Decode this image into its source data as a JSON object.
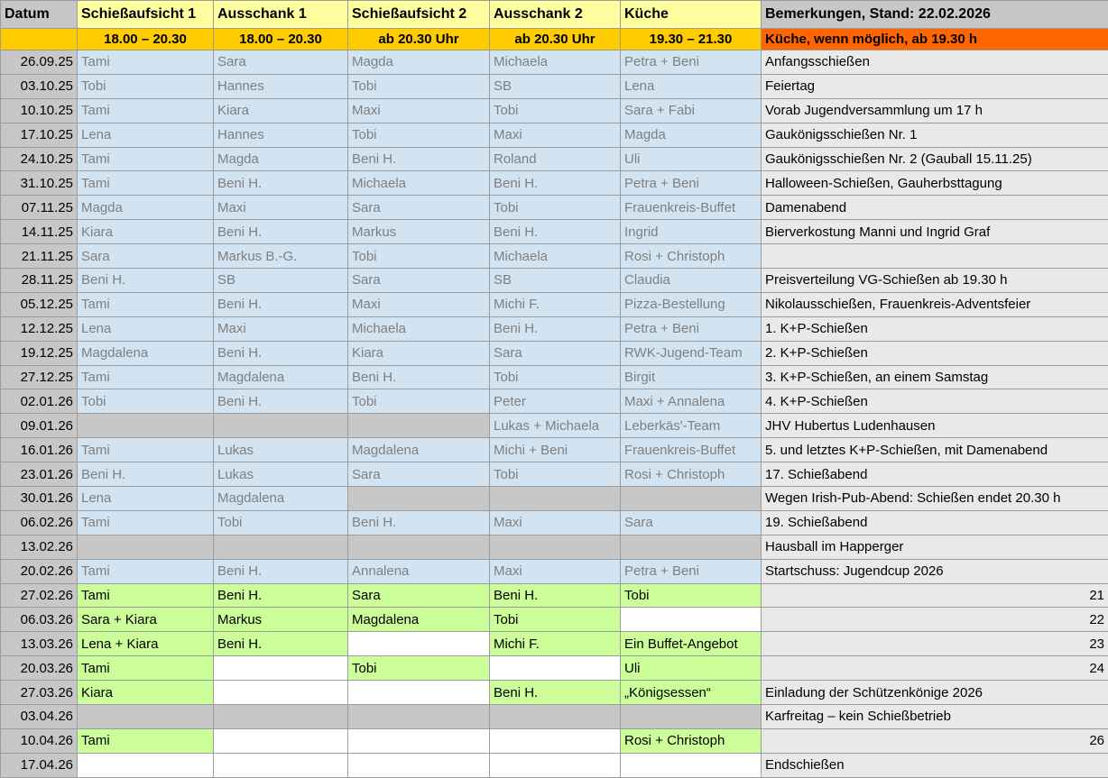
{
  "colors": {
    "header_yellow": "#FFFF9F",
    "gold": "#FFCC00",
    "orange": "#FF6600",
    "cell_blue": "#D2E4F2",
    "cell_green": "#CCFF99",
    "cell_gray": "#C7C7C7",
    "remark_gray": "#E9E9E9",
    "cell_text_gray": "#7F7F7F"
  },
  "table": {
    "columns": {
      "datum": "Datum",
      "cols": [
        {
          "label": "Schießaufsicht 1",
          "time": "18.00 – 20.30"
        },
        {
          "label": "Ausschank 1",
          "time": "18.00 – 20.30"
        },
        {
          "label": "Schießaufsicht 2",
          "time": "ab 20.30 Uhr"
        },
        {
          "label": "Ausschank 2",
          "time": "ab 20.30 Uhr"
        },
        {
          "label": "Küche",
          "time": "19.30 – 21.30"
        }
      ],
      "remarks_header": "Bemerkungen, Stand: 22.02.2026",
      "remarks_subheader": "Küche, wenn möglich, ab 19.30 h"
    },
    "rows": [
      {
        "date": "26.09.25",
        "cells": [
          {
            "t": "Tami",
            "bg": "blue"
          },
          {
            "t": "Sara",
            "bg": "blue"
          },
          {
            "t": "Magda",
            "bg": "blue"
          },
          {
            "t": "Michaela",
            "bg": "blue"
          },
          {
            "t": "Petra + Beni",
            "bg": "blue"
          }
        ],
        "remark": {
          "t": "Anfangsschießen",
          "align": "left"
        }
      },
      {
        "date": "03.10.25",
        "cells": [
          {
            "t": "Tobi",
            "bg": "blue"
          },
          {
            "t": "Hannes",
            "bg": "blue"
          },
          {
            "t": "Tobi",
            "bg": "blue"
          },
          {
            "t": "SB",
            "bg": "blue"
          },
          {
            "t": "Lena",
            "bg": "blue"
          }
        ],
        "remark": {
          "t": "Feiertag",
          "align": "left"
        }
      },
      {
        "date": "10.10.25",
        "cells": [
          {
            "t": "Tami",
            "bg": "blue"
          },
          {
            "t": "Kiara",
            "bg": "blue"
          },
          {
            "t": "Maxi",
            "bg": "blue"
          },
          {
            "t": "Tobi",
            "bg": "blue"
          },
          {
            "t": "Sara + Fabi",
            "bg": "blue"
          }
        ],
        "remark": {
          "t": "Vorab Jugendversammlung um 17 h",
          "align": "left"
        }
      },
      {
        "date": "17.10.25",
        "cells": [
          {
            "t": "Lena",
            "bg": "blue"
          },
          {
            "t": "Hannes",
            "bg": "blue"
          },
          {
            "t": "Tobi",
            "bg": "blue"
          },
          {
            "t": "Maxi",
            "bg": "blue"
          },
          {
            "t": "Magda",
            "bg": "blue"
          }
        ],
        "remark": {
          "t": "Gaukönigsschießen Nr. 1",
          "align": "left"
        }
      },
      {
        "date": "24.10.25",
        "cells": [
          {
            "t": "Tami",
            "bg": "blue"
          },
          {
            "t": "Magda",
            "bg": "blue"
          },
          {
            "t": "Beni H.",
            "bg": "blue"
          },
          {
            "t": "Roland",
            "bg": "blue"
          },
          {
            "t": "Uli",
            "bg": "blue"
          }
        ],
        "remark": {
          "t": "Gaukönigsschießen Nr. 2 (Gauball 15.11.25)",
          "align": "left"
        }
      },
      {
        "date": "31.10.25",
        "cells": [
          {
            "t": "Tami",
            "bg": "blue"
          },
          {
            "t": "Beni H.",
            "bg": "blue"
          },
          {
            "t": "Michaela",
            "bg": "blue"
          },
          {
            "t": "Beni H.",
            "bg": "blue"
          },
          {
            "t": "Petra + Beni",
            "bg": "blue"
          }
        ],
        "remark": {
          "t": "Halloween-Schießen, Gauherbsttagung",
          "align": "left"
        }
      },
      {
        "date": "07.11.25",
        "cells": [
          {
            "t": "Magda",
            "bg": "blue"
          },
          {
            "t": "Maxi",
            "bg": "blue"
          },
          {
            "t": "Sara",
            "bg": "blue"
          },
          {
            "t": "Tobi",
            "bg": "blue"
          },
          {
            "t": "Frauenkreis-Buffet",
            "bg": "blue"
          }
        ],
        "remark": {
          "t": "Damenabend",
          "align": "left"
        }
      },
      {
        "date": "14.11.25",
        "cells": [
          {
            "t": "Kiara",
            "bg": "blue"
          },
          {
            "t": "Beni H.",
            "bg": "blue"
          },
          {
            "t": "Markus",
            "bg": "blue"
          },
          {
            "t": "Beni H.",
            "bg": "blue"
          },
          {
            "t": "Ingrid",
            "bg": "blue"
          }
        ],
        "remark": {
          "t": "Bierverkostung Manni und Ingrid Graf",
          "align": "left"
        }
      },
      {
        "date": "21.11.25",
        "cells": [
          {
            "t": "Sara",
            "bg": "blue"
          },
          {
            "t": "Markus B.-G.",
            "bg": "blue"
          },
          {
            "t": "Tobi",
            "bg": "blue"
          },
          {
            "t": "Michaela",
            "bg": "blue"
          },
          {
            "t": "Rosi + Christoph",
            "bg": "blue"
          }
        ],
        "remark": {
          "t": "",
          "align": "left"
        }
      },
      {
        "date": "28.11.25",
        "cells": [
          {
            "t": "Beni H.",
            "bg": "blue"
          },
          {
            "t": "SB",
            "bg": "blue"
          },
          {
            "t": "Sara",
            "bg": "blue"
          },
          {
            "t": "SB",
            "bg": "blue"
          },
          {
            "t": "Claudia",
            "bg": "blue"
          }
        ],
        "remark": {
          "t": "Preisverteilung VG-Schießen ab 19.30 h",
          "align": "left"
        }
      },
      {
        "date": "05.12.25",
        "cells": [
          {
            "t": "Tami",
            "bg": "blue"
          },
          {
            "t": "Beni H.",
            "bg": "blue"
          },
          {
            "t": "Maxi",
            "bg": "blue"
          },
          {
            "t": "Michi F.",
            "bg": "blue"
          },
          {
            "t": "Pizza-Bestellung",
            "bg": "blue"
          }
        ],
        "remark": {
          "t": "Nikolausschießen, Frauenkreis-Adventsfeier",
          "align": "left"
        }
      },
      {
        "date": "12.12.25",
        "cells": [
          {
            "t": "Lena",
            "bg": "blue"
          },
          {
            "t": "Maxi",
            "bg": "blue"
          },
          {
            "t": "Michaela",
            "bg": "blue"
          },
          {
            "t": "Beni H.",
            "bg": "blue"
          },
          {
            "t": "Petra + Beni",
            "bg": "blue"
          }
        ],
        "remark": {
          "t": "1. K+P-Schießen",
          "align": "left"
        }
      },
      {
        "date": "19.12.25",
        "cells": [
          {
            "t": "Magdalena",
            "bg": "blue"
          },
          {
            "t": "Beni H.",
            "bg": "blue"
          },
          {
            "t": "Kiara",
            "bg": "blue"
          },
          {
            "t": "Sara",
            "bg": "blue"
          },
          {
            "t": "RWK-Jugend-Team",
            "bg": "blue"
          }
        ],
        "remark": {
          "t": "2. K+P-Schießen",
          "align": "left"
        }
      },
      {
        "date": "27.12.25",
        "cells": [
          {
            "t": "Tami",
            "bg": "blue"
          },
          {
            "t": "Magdalena",
            "bg": "blue"
          },
          {
            "t": "Beni H.",
            "bg": "blue"
          },
          {
            "t": "Tobi",
            "bg": "blue"
          },
          {
            "t": "Birgit",
            "bg": "blue"
          }
        ],
        "remark": {
          "t": "3. K+P-Schießen, an einem Samstag",
          "align": "left"
        }
      },
      {
        "date": "02.01.26",
        "cells": [
          {
            "t": "Tobi",
            "bg": "blue"
          },
          {
            "t": "Beni H.",
            "bg": "blue"
          },
          {
            "t": "Tobi",
            "bg": "blue"
          },
          {
            "t": "Peter",
            "bg": "blue"
          },
          {
            "t": "Maxi + Annalena",
            "bg": "blue"
          }
        ],
        "remark": {
          "t": "4. K+P-Schießen",
          "align": "left"
        }
      },
      {
        "date": "09.01.26",
        "cells": [
          {
            "t": "",
            "bg": "gray"
          },
          {
            "t": "",
            "bg": "gray"
          },
          {
            "t": "",
            "bg": "gray"
          },
          {
            "t": "Lukas + Michaela",
            "bg": "blue"
          },
          {
            "t": "Leberkäs'-Team",
            "bg": "blue"
          }
        ],
        "remark": {
          "t": "JHV Hubertus Ludenhausen",
          "align": "left"
        }
      },
      {
        "date": "16.01.26",
        "cells": [
          {
            "t": "Tami",
            "bg": "blue"
          },
          {
            "t": "Lukas",
            "bg": "blue"
          },
          {
            "t": "Magdalena",
            "bg": "blue"
          },
          {
            "t": "Michi + Beni",
            "bg": "blue"
          },
          {
            "t": "Frauenkreis-Buffet",
            "bg": "blue"
          }
        ],
        "remark": {
          "t": "5. und letztes K+P-Schießen, mit Damenabend",
          "align": "left"
        }
      },
      {
        "date": "23.01.26",
        "cells": [
          {
            "t": "Beni H.",
            "bg": "blue"
          },
          {
            "t": "Lukas",
            "bg": "blue"
          },
          {
            "t": "Sara",
            "bg": "blue"
          },
          {
            "t": "Tobi",
            "bg": "blue"
          },
          {
            "t": "Rosi + Christoph",
            "bg": "blue"
          }
        ],
        "remark": {
          "t": "17. Schießabend",
          "align": "left"
        }
      },
      {
        "date": "30.01.26",
        "cells": [
          {
            "t": "Lena",
            "bg": "blue"
          },
          {
            "t": "Magdalena",
            "bg": "blue"
          },
          {
            "t": "",
            "bg": "gray"
          },
          {
            "t": "",
            "bg": "gray"
          },
          {
            "t": "",
            "bg": "gray"
          }
        ],
        "remark": {
          "t": "Wegen Irish-Pub-Abend: Schießen endet 20.30 h",
          "align": "left"
        }
      },
      {
        "date": "06.02.26",
        "cells": [
          {
            "t": "Tami",
            "bg": "blue"
          },
          {
            "t": "Tobi",
            "bg": "blue"
          },
          {
            "t": "Beni H.",
            "bg": "blue"
          },
          {
            "t": "Maxi",
            "bg": "blue"
          },
          {
            "t": "Sara",
            "bg": "blue"
          }
        ],
        "remark": {
          "t": "19. Schießabend",
          "align": "left"
        }
      },
      {
        "date": "13.02.26",
        "cells": [
          {
            "t": "",
            "bg": "gray"
          },
          {
            "t": "",
            "bg": "gray"
          },
          {
            "t": "",
            "bg": "gray"
          },
          {
            "t": "",
            "bg": "gray"
          },
          {
            "t": "",
            "bg": "gray"
          }
        ],
        "remark": {
          "t": "Hausball im Happerger",
          "align": "left"
        }
      },
      {
        "date": "20.02.26",
        "cells": [
          {
            "t": "Tami",
            "bg": "blue"
          },
          {
            "t": "Beni H.",
            "bg": "blue"
          },
          {
            "t": "Annalena",
            "bg": "blue"
          },
          {
            "t": "Maxi",
            "bg": "blue"
          },
          {
            "t": "Petra + Beni",
            "bg": "blue"
          }
        ],
        "remark": {
          "t": "Startschuss: Jugendcup 2026",
          "align": "left"
        }
      },
      {
        "date": "27.02.26",
        "cells": [
          {
            "t": "Tami",
            "bg": "green"
          },
          {
            "t": "Beni H.",
            "bg": "green"
          },
          {
            "t": "Sara",
            "bg": "green"
          },
          {
            "t": "Beni H.",
            "bg": "green"
          },
          {
            "t": "Tobi",
            "bg": "green"
          }
        ],
        "remark": {
          "t": "21",
          "align": "right"
        }
      },
      {
        "date": "06.03.26",
        "cells": [
          {
            "t": "Sara + Kiara",
            "bg": "green"
          },
          {
            "t": "Markus",
            "bg": "green"
          },
          {
            "t": "Magdalena",
            "bg": "green"
          },
          {
            "t": "Tobi",
            "bg": "green"
          },
          {
            "t": "",
            "bg": "white"
          }
        ],
        "remark": {
          "t": "22",
          "align": "right"
        }
      },
      {
        "date": "13.03.26",
        "cells": [
          {
            "t": "Lena + Kiara",
            "bg": "green"
          },
          {
            "t": "Beni H.",
            "bg": "green"
          },
          {
            "t": "",
            "bg": "white"
          },
          {
            "t": "Michi F.",
            "bg": "green"
          },
          {
            "t": "Ein Buffet-Angebot",
            "bg": "green"
          }
        ],
        "remark": {
          "t": "23",
          "align": "right"
        }
      },
      {
        "date": "20.03.26",
        "cells": [
          {
            "t": "Tami",
            "bg": "green"
          },
          {
            "t": "",
            "bg": "white"
          },
          {
            "t": "Tobi",
            "bg": "green"
          },
          {
            "t": "",
            "bg": "white"
          },
          {
            "t": "Uli",
            "bg": "green"
          }
        ],
        "remark": {
          "t": "24",
          "align": "right"
        }
      },
      {
        "date": "27.03.26",
        "cells": [
          {
            "t": "Kiara",
            "bg": "green"
          },
          {
            "t": "",
            "bg": "white"
          },
          {
            "t": "",
            "bg": "white"
          },
          {
            "t": "Beni H.",
            "bg": "green"
          },
          {
            "t": "„Königsessen“",
            "bg": "green"
          }
        ],
        "remark": {
          "t": "Einladung der Schützenkönige 2026",
          "align": "left"
        }
      },
      {
        "date": "03.04.26",
        "cells": [
          {
            "t": "",
            "bg": "gray"
          },
          {
            "t": "",
            "bg": "gray"
          },
          {
            "t": "",
            "bg": "gray"
          },
          {
            "t": "",
            "bg": "gray"
          },
          {
            "t": "",
            "bg": "gray"
          }
        ],
        "remark": {
          "t": "Karfreitag – kein Schießbetrieb",
          "align": "left"
        }
      },
      {
        "date": "10.04.26",
        "cells": [
          {
            "t": "Tami",
            "bg": "green"
          },
          {
            "t": "",
            "bg": "white"
          },
          {
            "t": "",
            "bg": "white"
          },
          {
            "t": "",
            "bg": "white"
          },
          {
            "t": "Rosi + Christoph",
            "bg": "green"
          }
        ],
        "remark": {
          "t": "26",
          "align": "right"
        }
      },
      {
        "date": "17.04.26",
        "cells": [
          {
            "t": "",
            "bg": "white"
          },
          {
            "t": "",
            "bg": "white"
          },
          {
            "t": "",
            "bg": "white"
          },
          {
            "t": "",
            "bg": "white"
          },
          {
            "t": "",
            "bg": "white"
          }
        ],
        "remark": {
          "t": "Endschießen",
          "align": "left"
        }
      }
    ]
  }
}
